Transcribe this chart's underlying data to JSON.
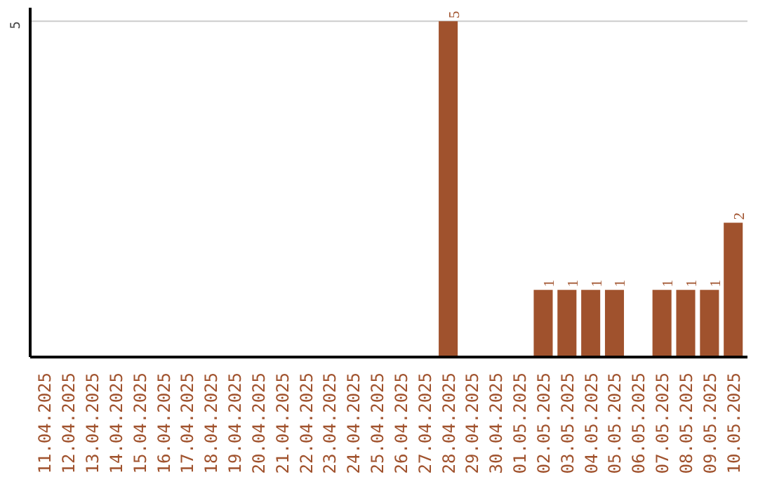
{
  "chart_data": {
    "type": "bar",
    "categories": [
      "11.04.2025",
      "12.04.2025",
      "13.04.2025",
      "14.04.2025",
      "15.04.2025",
      "16.04.2025",
      "17.04.2025",
      "18.04.2025",
      "19.04.2025",
      "20.04.2025",
      "21.04.2025",
      "22.04.2025",
      "23.04.2025",
      "24.04.2025",
      "25.04.2025",
      "26.04.2025",
      "27.04.2025",
      "28.04.2025",
      "29.04.2025",
      "30.04.2025",
      "01.05.2025",
      "02.05.2025",
      "03.05.2025",
      "04.05.2025",
      "05.05.2025",
      "06.05.2025",
      "07.05.2025",
      "08.05.2025",
      "09.05.2025",
      "10.05.2025"
    ],
    "values": [
      null,
      null,
      null,
      null,
      null,
      null,
      null,
      null,
      null,
      null,
      null,
      null,
      null,
      null,
      null,
      null,
      null,
      5,
      null,
      null,
      null,
      1,
      1,
      1,
      1,
      null,
      1,
      1,
      1,
      2
    ],
    "data_labels": true,
    "color": "#a0522d",
    "ylim": [
      0,
      5.2
    ],
    "ref_lines": [
      {
        "axis": "y",
        "value": 5,
        "label": "5",
        "color": "#cccccc"
      }
    ]
  }
}
